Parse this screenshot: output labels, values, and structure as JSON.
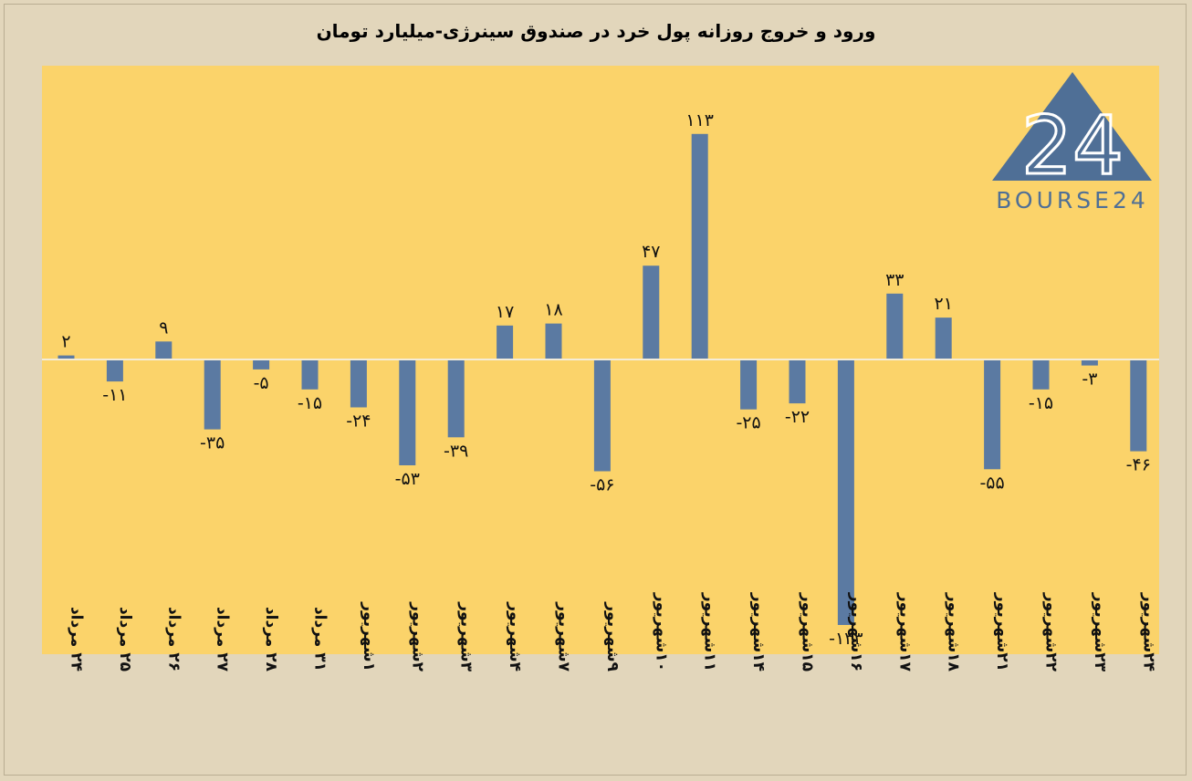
{
  "chart_data": {
    "type": "bar",
    "title": "ورود و خروج روزانه پول خرد در صندوق سینرژی-میلیارد تومان",
    "categories": [
      "۲۴ مرداد",
      "۲۵ مرداد",
      "۲۶ مرداد",
      "۲۷ مرداد",
      "۲۸ مرداد",
      "۳۱ مرداد",
      "۱شهریور",
      "۲شهریور",
      "۳شهریور",
      "۴شهریور",
      "۷شهریور",
      "۹شهریور",
      "۱۰شهریور",
      "۱۱شهریور",
      "۱۴شهریور",
      "۱۵شهریور",
      "۱۶شهریور",
      "۱۷شهریور",
      "۱۸شهریور",
      "۲۱شهریور",
      "۲۲شهریور",
      "۲۳شهریور",
      "۲۴شهریور"
    ],
    "values": [
      2,
      -11,
      9,
      -35,
      -5,
      -15,
      -24,
      -53,
      -39,
      17,
      18,
      -56,
      47,
      113,
      -25,
      -22,
      -133,
      33,
      21,
      -55,
      -15,
      -3,
      -46
    ],
    "value_labels": [
      "۲",
      "-۱۱",
      "۹",
      "-۳۵",
      "-۵",
      "-۱۵",
      "-۲۴",
      "-۵۳",
      "-۳۹",
      "۱۷",
      "۱۸",
      "-۵۶",
      "۴۷",
      "۱۱۳",
      "-۲۵",
      "-۲۲",
      "-۱۳۳",
      "۳۳",
      "۲۱",
      "-۵۵",
      "-۱۵",
      "-۳",
      "-۴۶"
    ],
    "ylim": [
      -150,
      150
    ],
    "grid": false,
    "colors": {
      "bar": "#5b7aa2",
      "plot_background": "#fbd36a",
      "page_background": "#e2d6bb",
      "zero_line": "#f4ecd8"
    }
  },
  "logo": {
    "text": "BOURSE24",
    "mark_text": "24",
    "color": "#4f6f96"
  }
}
